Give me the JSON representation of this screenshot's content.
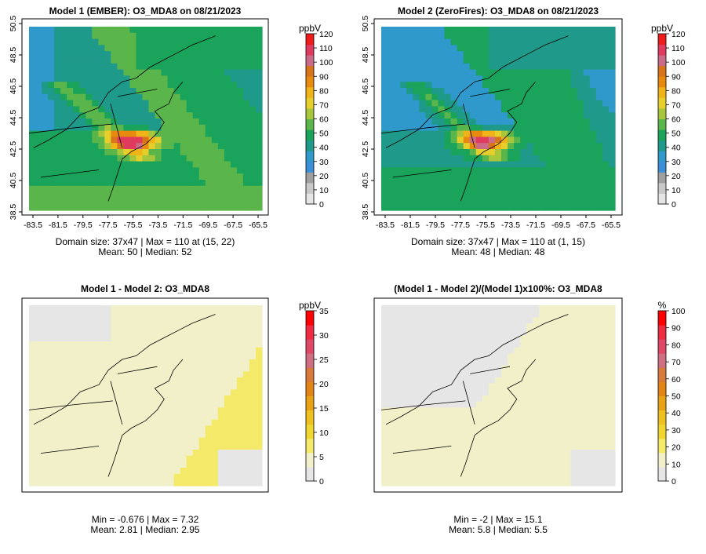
{
  "colors": {
    "ramp": [
      "#e5e5e5",
      "#c9c9c9",
      "#9f9f9f",
      "#3a8fd8",
      "#2f99cc",
      "#1f9a8a",
      "#1aa35a",
      "#5ab54a",
      "#a8c63b",
      "#e6cf2b",
      "#f0b418",
      "#e88a0e",
      "#d8741a",
      "#cc6b88",
      "#e03a5f",
      "#f01b1b"
    ],
    "diff_ramp": [
      "#e6e6e6",
      "#f2f0c8",
      "#f5e96a",
      "#f2d630",
      "#eec11e",
      "#e9a213",
      "#e28515",
      "#d77a3a",
      "#cf6e80",
      "#e04868",
      "#f02a40",
      "#ff0000"
    ],
    "land_line": "#000000",
    "frame": "#000000"
  },
  "panels": [
    {
      "id": "model1",
      "title": "Model 1 (EMBER): O3_MDA8 on 08/21/2023",
      "unit": "ppbV",
      "colorbar_ticks": [
        "0",
        "10",
        "20",
        "30",
        "40",
        "50",
        "60",
        "70",
        "80",
        "90",
        "100",
        "110",
        "120"
      ],
      "x_ticks": [
        "-83.5",
        "-81.5",
        "-79.5",
        "-77.5",
        "-75.5",
        "-73.5",
        "-71.5",
        "-69.5",
        "-67.5",
        "-65.5"
      ],
      "y_ticks": [
        "38.5",
        "40.5",
        "42.5",
        "44.5",
        "46.5",
        "48.5",
        "50.5"
      ],
      "stat1": "Domain size: 37x47 | Max = 110 at (15, 22)",
      "stat2": "Mean: 50 |  Median: 52",
      "field": "abs"
    },
    {
      "id": "model2",
      "title": "Model 2 (ZeroFires): O3_MDA8 on 08/21/2023",
      "unit": "ppbV",
      "colorbar_ticks": [
        "0",
        "10",
        "20",
        "30",
        "40",
        "50",
        "60",
        "70",
        "80",
        "90",
        "100",
        "110",
        "120"
      ],
      "x_ticks": [
        "-83.5",
        "-81.5",
        "-79.5",
        "-77.5",
        "-75.5",
        "-73.5",
        "-71.5",
        "-69.5",
        "-67.5",
        "-65.5"
      ],
      "y_ticks": [
        "38.5",
        "40.5",
        "42.5",
        "44.5",
        "46.5",
        "48.5",
        "50.5"
      ],
      "stat1": "Domain size: 37x47 | Max = 110 at (1, 15)",
      "stat2": "Mean: 48 |  Median: 48",
      "field": "abs2"
    },
    {
      "id": "diff",
      "title": "Model 1 - Model 2: O3_MDA8",
      "unit": "ppbV",
      "colorbar_ticks": [
        "0",
        "5",
        "10",
        "15",
        "20",
        "25",
        "30",
        "35"
      ],
      "x_ticks": [],
      "y_ticks": [],
      "stat1": "Min = -0.676 | Max = 7.32",
      "stat2": "Mean: 2.81 |  Median: 2.95",
      "field": "diff"
    },
    {
      "id": "pct",
      "title": "(Model 1 - Model 2)/(Model 1)x100%: O3_MDA8",
      "unit": "%",
      "colorbar_ticks": [
        "0",
        "10",
        "20",
        "30",
        "40",
        "50",
        "60",
        "70",
        "80",
        "90",
        "100"
      ],
      "x_ticks": [],
      "y_ticks": [],
      "stat1": "Min = -2 | Max = 15.1",
      "stat2": "Mean: 5.8 |  Median: 5.5",
      "field": "pct"
    }
  ]
}
